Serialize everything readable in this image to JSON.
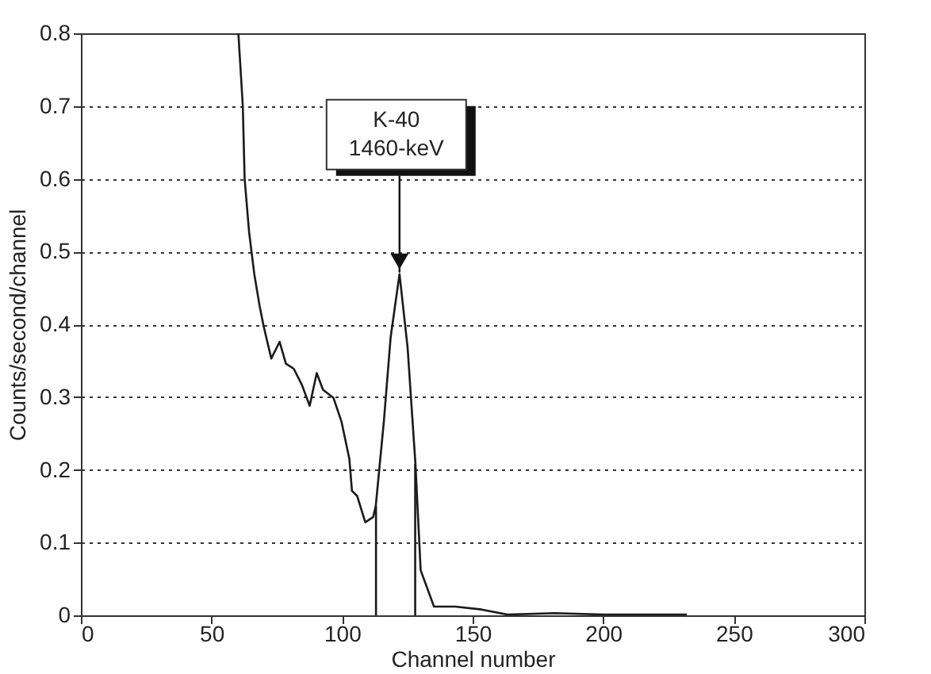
{
  "chart_data": {
    "type": "line",
    "xlabel": "Channel number",
    "ylabel": "Counts/second/channel",
    "xlim": [
      0,
      300
    ],
    "ylim": [
      0,
      0.8
    ],
    "xticks": [
      0,
      50,
      100,
      150,
      200,
      250,
      300
    ],
    "yticks": [
      0,
      0.1,
      0.2,
      0.3,
      0.4,
      0.5,
      0.6,
      0.7,
      0.8
    ],
    "grid": "y",
    "line_style": "solid",
    "series": [
      {
        "color": "#1a1a1a",
        "x": [
          60.3,
          62,
          62.7,
          64.4,
          66.4,
          68.4,
          70,
          72.9,
          76.1,
          78.5,
          81.5,
          84.6,
          87.6,
          90.3,
          92.7,
          96.7,
          99.8,
          102.8,
          103.8,
          105.8,
          108.9,
          111.9,
          112.9,
          116,
          118.6,
          122,
          125.1,
          128.1,
          130.1,
          135.2,
          143.3,
          153.4,
          163.3,
          181.5,
          200,
          232
        ],
        "values": [
          0.8,
          0.7,
          0.6,
          0.527,
          0.469,
          0.426,
          0.397,
          0.353,
          0.376,
          0.346,
          0.339,
          0.317,
          0.288,
          0.333,
          0.31,
          0.299,
          0.266,
          0.215,
          0.171,
          0.164,
          0.128,
          0.135,
          0.15,
          0.266,
          0.382,
          0.469,
          0.368,
          0.208,
          0.062,
          0.012,
          0.012,
          0.008,
          0.001,
          0.003,
          0.001,
          0.001
        ]
      },
      {
        "color": "#1a1a1a",
        "x": [
          113,
          113
        ],
        "values": [
          0,
          0.15
        ]
      },
      {
        "color": "#1a1a1a",
        "x": [
          128,
          128
        ],
        "values": [
          0,
          0.208
        ]
      }
    ],
    "annotations": [
      {
        "text": "K-40\n1460-keV",
        "x": 122,
        "y": 0.469
      }
    ]
  }
}
